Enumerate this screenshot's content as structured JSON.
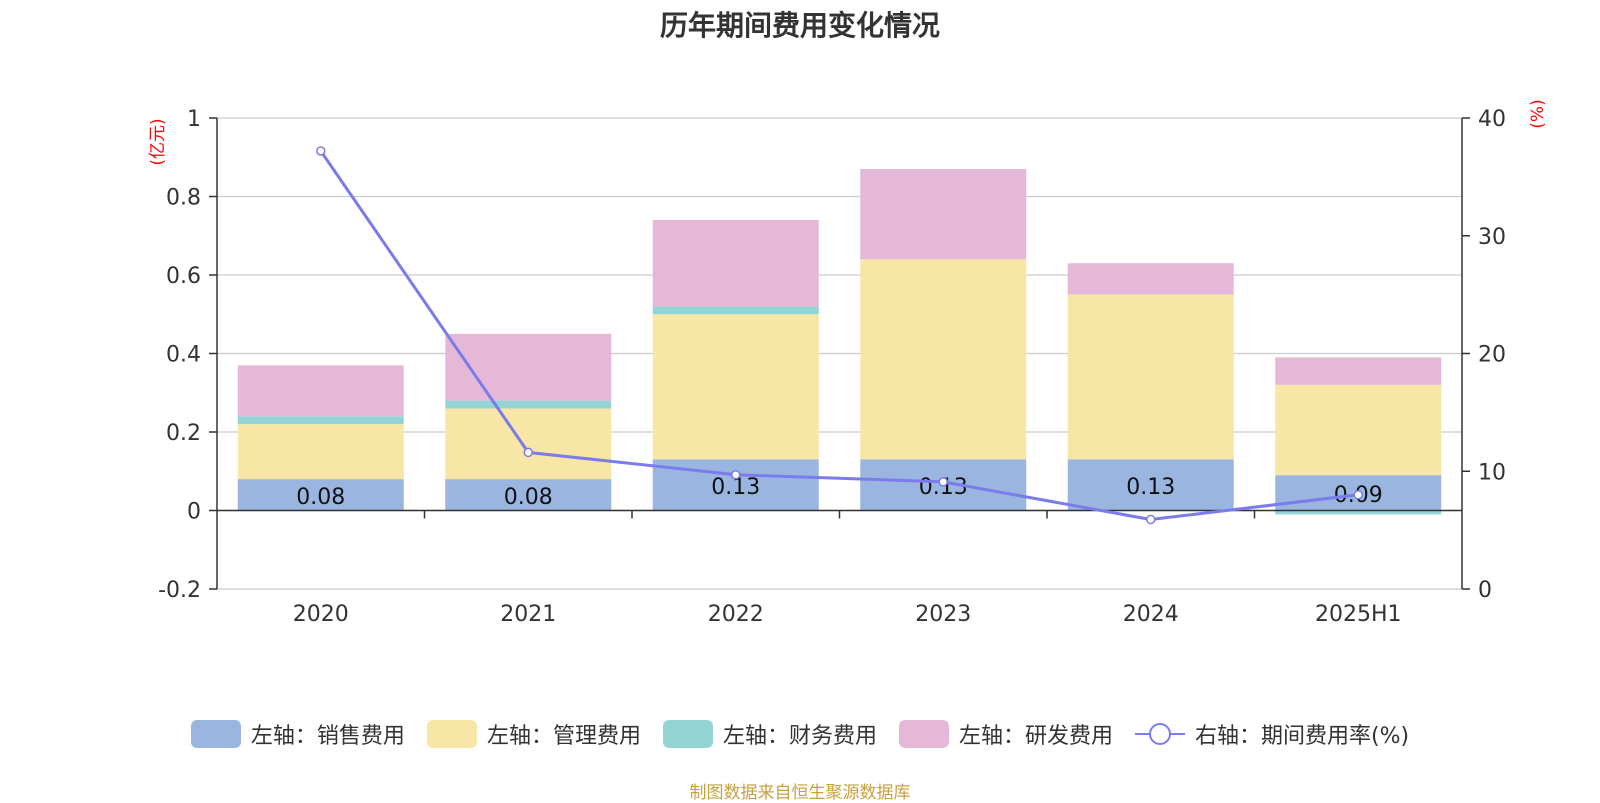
{
  "chart_data": {
    "type": "bar",
    "title": "历年期间费用变化情况",
    "categories": [
      "2020",
      "2021",
      "2022",
      "2023",
      "2024",
      "2025H1"
    ],
    "left_axis": {
      "unit": "(亿元)",
      "ylim": [
        -0.2,
        1
      ],
      "ticks": [
        "1",
        "0.8",
        "0.6",
        "0.4",
        "0.2",
        "0",
        "-0.2"
      ]
    },
    "right_axis": {
      "unit": "(%)",
      "ylim": [
        0,
        40
      ],
      "ticks": [
        "40",
        "30",
        "20",
        "10",
        "0"
      ]
    },
    "stacked": true,
    "grid": true,
    "legend_position": "bottom",
    "series": [
      {
        "name": "左轴：销售费用",
        "axis": "left",
        "color": "#9ab6e0",
        "values": [
          0.08,
          0.08,
          0.13,
          0.13,
          0.13,
          0.09
        ],
        "labels": [
          "0.08",
          "0.08",
          "0.13",
          "0.13",
          "0.13",
          "0.09"
        ]
      },
      {
        "name": "左轴：管理费用",
        "axis": "left",
        "color": "#f7e6a6",
        "values": [
          0.14,
          0.18,
          0.37,
          0.51,
          0.42,
          0.23
        ]
      },
      {
        "name": "左轴：财务费用",
        "axis": "left",
        "color": "#94d4d4",
        "values": [
          0.02,
          0.02,
          0.02,
          0.0,
          0.0,
          -0.01
        ]
      },
      {
        "name": "左轴：研发费用",
        "axis": "left",
        "color": "#e6b8d8",
        "values": [
          0.13,
          0.17,
          0.22,
          0.23,
          0.08,
          0.07
        ]
      },
      {
        "name": "右轴：期间费用率(%)",
        "axis": "right",
        "type": "line",
        "color": "#7b7bec",
        "values": [
          37.2,
          11.6,
          9.7,
          9.1,
          5.9,
          8.0
        ]
      }
    ]
  },
  "source": "制图数据来自恒生聚源数据库"
}
